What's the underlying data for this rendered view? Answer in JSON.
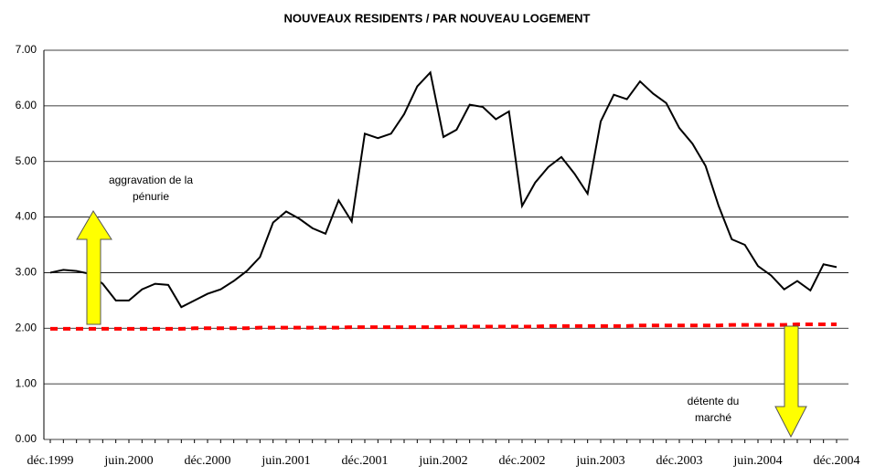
{
  "chart_data": {
    "type": "line",
    "title": "NOUVEAUX RESIDENTS / PAR NOUVEAU LOGEMENT",
    "categories": [
      "déc.1999",
      null,
      null,
      null,
      null,
      null,
      "juin.2000",
      null,
      null,
      null,
      null,
      null,
      "déc.2000",
      null,
      null,
      null,
      null,
      null,
      "juin.2001",
      null,
      null,
      null,
      null,
      null,
      "déc.2001",
      null,
      null,
      null,
      null,
      null,
      "juin.2002",
      null,
      null,
      null,
      null,
      null,
      "déc.2002",
      null,
      null,
      null,
      null,
      null,
      "juin.2003",
      null,
      null,
      null,
      null,
      null,
      "déc.2003",
      null,
      null,
      null,
      null,
      null,
      "juin.2004",
      null,
      null,
      null,
      null,
      null,
      "déc.2004"
    ],
    "series": [
      {
        "color": "#000000",
        "dashed": false,
        "values": [
          3.0,
          3.05,
          3.03,
          2.98,
          2.8,
          2.5,
          2.5,
          2.7,
          2.8,
          2.78,
          2.38,
          2.5,
          2.62,
          2.7,
          2.85,
          3.03,
          3.28,
          3.9,
          4.1,
          3.97,
          3.8,
          3.7,
          4.3,
          3.92,
          5.5,
          5.42,
          5.5,
          5.85,
          6.35,
          6.6,
          5.44,
          5.57,
          6.02,
          5.98,
          5.76,
          5.9,
          4.2,
          4.62,
          4.9,
          5.08,
          4.78,
          4.42,
          5.72,
          6.2,
          6.12,
          6.44,
          6.22,
          6.05,
          5.6,
          5.32,
          4.92,
          4.2,
          3.6,
          3.5,
          3.12,
          2.95,
          2.7,
          2.85,
          2.68,
          3.15,
          3.1
        ]
      },
      {
        "color": "#ff0000",
        "dashed": true,
        "values": [
          1.99,
          1.99,
          1.99,
          1.99,
          1.99,
          1.99,
          1.99,
          1.99,
          1.99,
          1.99,
          1.99,
          2.0,
          2.0,
          2.0,
          2.0,
          2.0,
          2.01,
          2.01,
          2.01,
          2.01,
          2.01,
          2.01,
          2.01,
          2.02,
          2.02,
          2.02,
          2.02,
          2.02,
          2.02,
          2.02,
          2.02,
          2.03,
          2.03,
          2.03,
          2.03,
          2.03,
          2.03,
          2.03,
          2.04,
          2.04,
          2.04,
          2.04,
          2.04,
          2.04,
          2.04,
          2.05,
          2.05,
          2.05,
          2.05,
          2.05,
          2.05,
          2.05,
          2.06,
          2.06,
          2.06,
          2.06,
          2.06,
          2.07,
          2.07,
          2.07,
          2.07
        ]
      }
    ],
    "ylim": [
      0,
      7
    ],
    "yticks": [
      {
        "value": 0,
        "label": "0.00"
      },
      {
        "value": 1,
        "label": "1.00"
      },
      {
        "value": 2,
        "label": "2.00"
      },
      {
        "value": 3,
        "label": "3.00"
      },
      {
        "value": 4,
        "label": "4.00"
      },
      {
        "value": 5,
        "label": "5.00"
      },
      {
        "value": 6,
        "label": "6.00"
      },
      {
        "value": 7,
        "label": "7.00"
      }
    ],
    "grid": true,
    "annotations": [
      {
        "lines": [
          "aggravation de la",
          "pénurie"
        ]
      },
      {
        "lines": [
          "détente du",
          "marché"
        ]
      }
    ]
  }
}
